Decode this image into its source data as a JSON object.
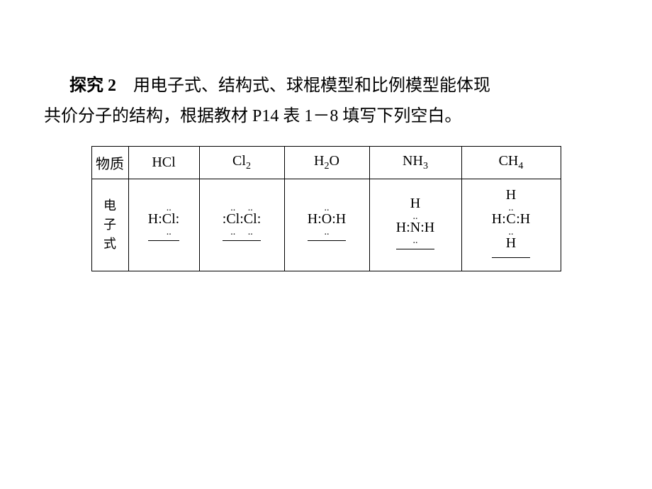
{
  "paragraph": {
    "bold_label": "探究 2",
    "line1_rest": "　用电子式、结构式、球棍模型和比例模型能体现",
    "line2": "共价分子的结构，根据教材 P14 表 1－8 填写下列空白。"
  },
  "table": {
    "row_headers": [
      "物质",
      "电\n子\n式"
    ],
    "columns": [
      {
        "header": "HCl",
        "formula": {
          "type": "hcl",
          "h": "H",
          "cl": "Cl",
          "dots_top": "..",
          "dots_bottom": "..",
          "colon": ":"
        }
      },
      {
        "header": "Cl₂",
        "header_base": "Cl",
        "header_sub": "2",
        "formula": {
          "type": "cl2",
          "cl": "Cl",
          "dots_top": "..",
          "dots_bottom": "..",
          "colon": ":"
        }
      },
      {
        "header": "H₂O",
        "header_base_pre": "H",
        "header_sub": "2",
        "header_base_post": "O",
        "formula": {
          "type": "h2o",
          "h": "H",
          "o": "O",
          "dots_top": "..",
          "dots_bottom": "..",
          "colon": ":"
        }
      },
      {
        "header": "NH₃",
        "header_base": "NH",
        "header_sub": "3",
        "formula": {
          "type": "nh3",
          "h": "H",
          "n": "N",
          "dots_top": "..",
          "dots_bottom": "..",
          "colon": ":"
        }
      },
      {
        "header": "CH₄",
        "header_base": "CH",
        "header_sub": "4",
        "formula": {
          "type": "ch4",
          "h": "H",
          "c": "C",
          "dots_top": "..",
          "dots_bottom": "..",
          "colon": ":"
        }
      }
    ]
  },
  "style": {
    "background_color": "#ffffff",
    "text_color": "#000000",
    "border_color": "#000000",
    "paragraph_fontsize": 24,
    "header_fontsize": 20,
    "formula_fontsize": 20
  }
}
